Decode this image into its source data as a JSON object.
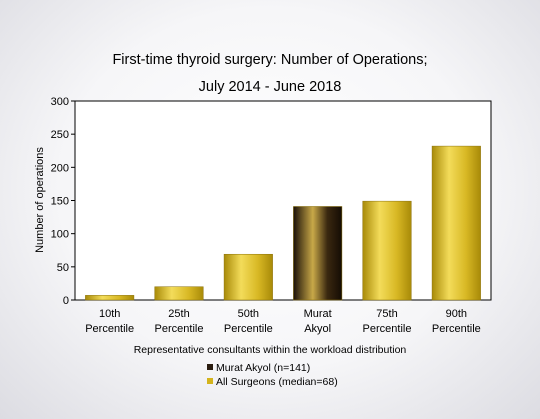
{
  "chart_data": {
    "type": "bar",
    "title": [
      "First-time thyroid surgery: Number of Operations;",
      "July 2014 - June 2018"
    ],
    "xlabel": "Representative consultants within the workload distribution",
    "ylabel": "Number of operations",
    "ylim": [
      0,
      300
    ],
    "yticks": [
      0,
      50,
      100,
      150,
      200,
      250,
      300
    ],
    "grid": false,
    "categories": [
      [
        "10th",
        "Percentile"
      ],
      [
        "25th",
        "Percentile"
      ],
      [
        "50th",
        "Percentile"
      ],
      [
        "Murat",
        "Akyol"
      ],
      [
        "75th",
        "Percentile"
      ],
      [
        "90th",
        "Percentile"
      ]
    ],
    "values": [
      7,
      20,
      69,
      141,
      149,
      232
    ],
    "bar_series": [
      "all",
      "all",
      "all",
      "highlight",
      "all",
      "all"
    ],
    "series": [
      {
        "key": "highlight",
        "name": "Murat Akyol (n=141)",
        "color": "#2a1c10"
      },
      {
        "key": "all",
        "name": "All Surgeons (median=68)",
        "color": "#d4b41c"
      }
    ],
    "legend_position": "bottom"
  }
}
